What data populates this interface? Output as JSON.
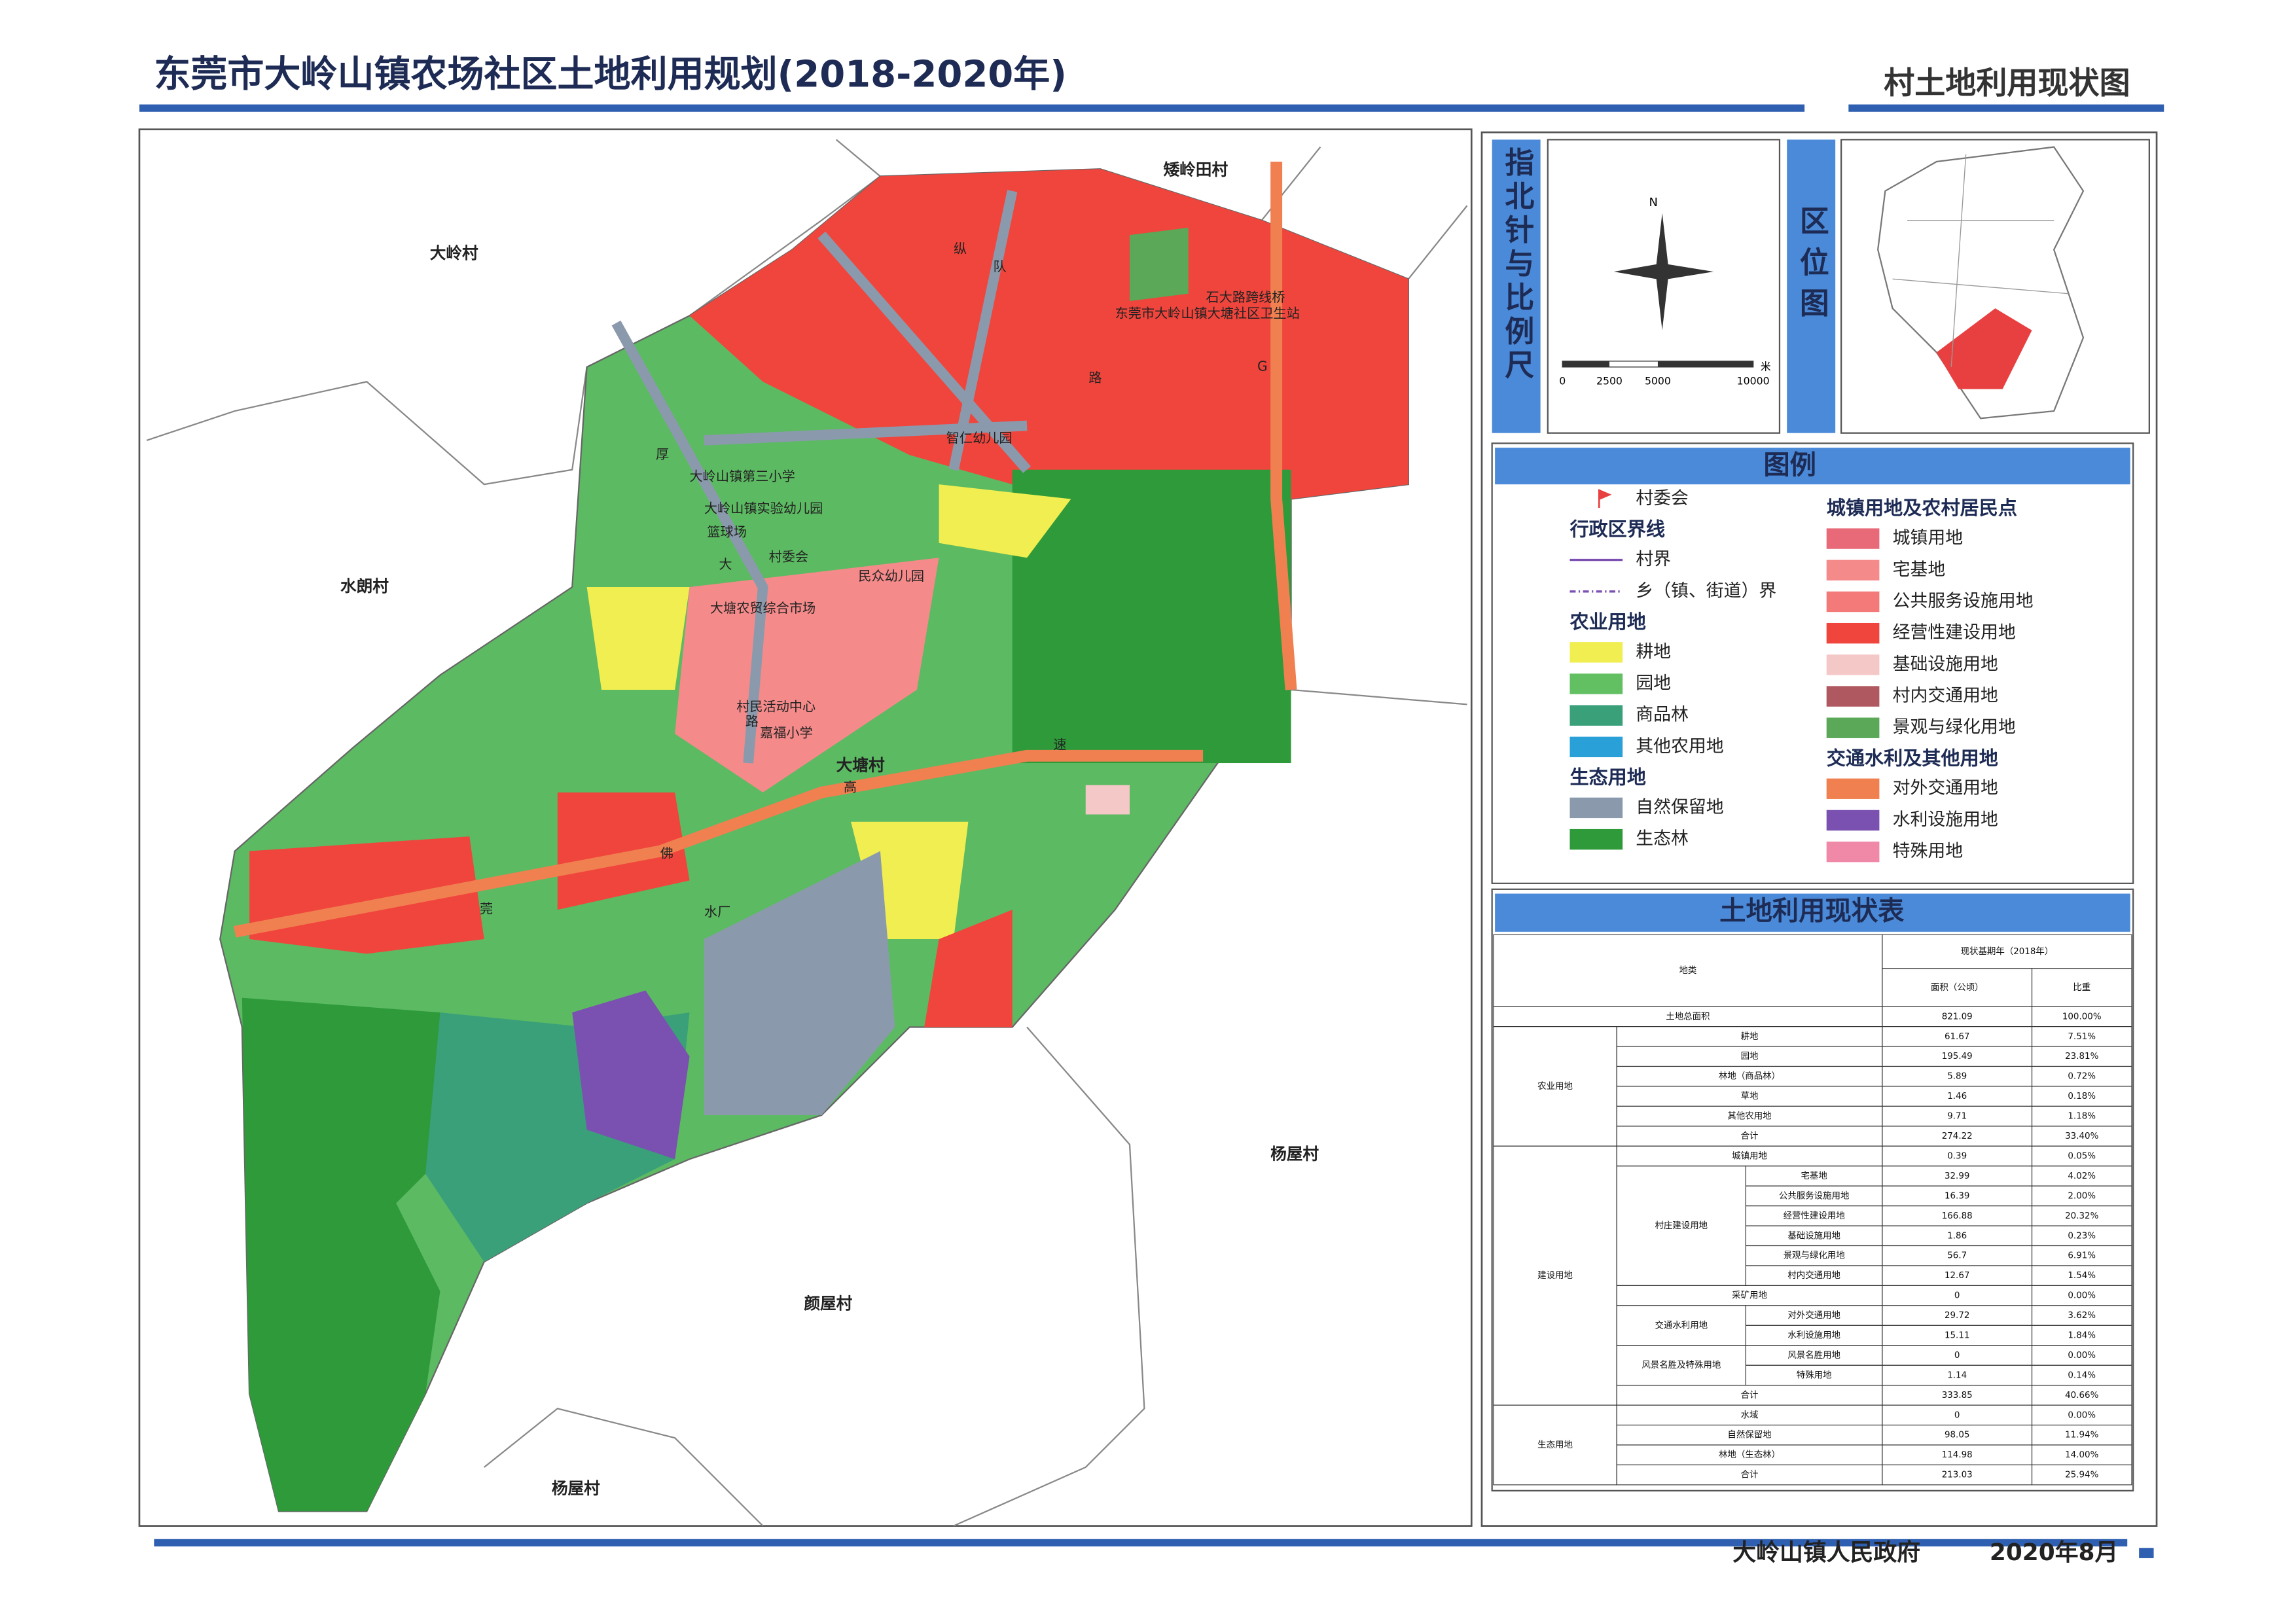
{
  "header": {
    "title": "东莞市大岭山镇农场社区土地利用规划(2018-2020年)",
    "subtitle": "村土地利用现状图"
  },
  "map": {
    "labels": [
      "大岭村",
      "矮岭田村",
      "水朗村",
      "杨屋村",
      "颜屋村",
      "杨屋村",
      "大塘村",
      "石大路跨线桥",
      "东莞市大岭山镇大塘社区卫生站",
      "智仁幼儿园",
      "大岭山镇第三小学",
      "大岭山镇实验幼儿园",
      "篮球场",
      "村委会",
      "民众幼儿园",
      "大塘农贸综合市场",
      "村民活动中心",
      "嘉福小学",
      "水厂",
      "莞",
      "佛",
      "高",
      "速",
      "厚",
      "大",
      "路",
      "纵",
      "队",
      "路",
      "G"
    ]
  },
  "compass": {
    "title": "指北针与比例尺",
    "north": "N",
    "scale": [
      "0",
      "2500",
      "5000",
      "10000"
    ],
    "unit": "米"
  },
  "location": {
    "title": "区位图"
  },
  "legend": {
    "title": "图例",
    "left": [
      {
        "label": "村委会",
        "marker": "flag"
      },
      {
        "label": "行政区界线"
      },
      {
        "label": "村界",
        "line": "solid"
      },
      {
        "label": "乡（镇、街道）界",
        "line": "dash"
      },
      {
        "label": "农业用地"
      },
      {
        "label": "耕地",
        "color": "#f0ee50"
      },
      {
        "label": "园地",
        "color": "#62c062"
      },
      {
        "label": "商品林",
        "color": "#3aa07a"
      },
      {
        "label": "其他农用地",
        "color": "#2aa0d8"
      },
      {
        "label": "生态用地"
      },
      {
        "label": "自然保留地",
        "color": "#8a9aac"
      },
      {
        "label": "生态林",
        "color": "#2e9a3a"
      }
    ],
    "right": [
      {
        "label": "城镇用地及农村居民点"
      },
      {
        "label": "城镇用地",
        "color": "#e86a78"
      },
      {
        "label": "宅基地",
        "color": "#f58a8a"
      },
      {
        "label": "公共服务设施用地",
        "color": "#f47a7a"
      },
      {
        "label": "经营性建设用地",
        "color": "#f0453c"
      },
      {
        "label": "基础设施用地",
        "color": "#f5c8c8"
      },
      {
        "label": "村内交通用地",
        "color": "#b05860"
      },
      {
        "label": "景观与绿化用地",
        "color": "#5aa858"
      },
      {
        "label": "交通水利及其他用地"
      },
      {
        "label": "对外交通用地",
        "color": "#f08050"
      },
      {
        "label": "水利设施用地",
        "color": "#7a50b0"
      },
      {
        "label": "特殊用地",
        "color": "#f088a8"
      }
    ]
  },
  "table": {
    "title": "土地利用现状表",
    "head": {
      "kind": "地类",
      "year": "现状基期年（2018年）",
      "area": "面积（公顷）",
      "ratio": "比重"
    },
    "total": {
      "label": "土地总面积",
      "area": "821.09",
      "ratio": "100.00%"
    },
    "groups": [
      {
        "name": "农业用地",
        "items": [
          {
            "label": "耕地",
            "area": "61.67",
            "ratio": "7.51%"
          },
          {
            "label": "园地",
            "area": "195.49",
            "ratio": "23.81%"
          },
          {
            "label": "林地（商品林）",
            "area": "5.89",
            "ratio": "0.72%"
          },
          {
            "label": "草地",
            "area": "1.46",
            "ratio": "0.18%"
          },
          {
            "label": "其他农用地",
            "area": "9.71",
            "ratio": "1.18%"
          },
          {
            "label": "合计",
            "area": "274.22",
            "ratio": "33.40%"
          }
        ]
      },
      {
        "name": "建设用地",
        "items": [
          {
            "label": "城镇用地",
            "area": "0.39",
            "ratio": "0.05%"
          },
          {
            "name": "村庄建设用地",
            "rows": [
              {
                "label": "宅基地",
                "area": "32.99",
                "ratio": "4.02%"
              },
              {
                "label": "公共服务设施用地",
                "area": "16.39",
                "ratio": "2.00%"
              },
              {
                "label": "经营性建设用地",
                "area": "166.88",
                "ratio": "20.32%"
              },
              {
                "label": "基础设施用地",
                "area": "1.86",
                "ratio": "0.23%"
              },
              {
                "label": "景观与绿化用地",
                "area": "56.7",
                "ratio": "6.91%"
              },
              {
                "label": "村内交通用地",
                "area": "12.67",
                "ratio": "1.54%"
              }
            ]
          },
          {
            "label": "采矿用地",
            "area": "0",
            "ratio": "0.00%"
          },
          {
            "name": "交通水利用地",
            "rows": [
              {
                "label": "对外交通用地",
                "area": "29.72",
                "ratio": "3.62%"
              },
              {
                "label": "水利设施用地",
                "area": "15.11",
                "ratio": "1.84%"
              }
            ]
          },
          {
            "name": "风景名胜及特殊用地",
            "rows": [
              {
                "label": "风景名胜用地",
                "area": "0",
                "ratio": "0.00%"
              },
              {
                "label": "特殊用地",
                "area": "1.14",
                "ratio": "0.14%"
              }
            ]
          },
          {
            "label": "合计",
            "area": "333.85",
            "ratio": "40.66%"
          }
        ]
      },
      {
        "name": "生态用地",
        "items": [
          {
            "label": "水域",
            "area": "0",
            "ratio": "0.00%"
          },
          {
            "label": "自然保留地",
            "area": "98.05",
            "ratio": "11.94%"
          },
          {
            "label": "林地（生态林）",
            "area": "114.98",
            "ratio": "14.00%"
          },
          {
            "label": "合计",
            "area": "213.03",
            "ratio": "25.94%"
          }
        ]
      }
    ]
  },
  "footer": {
    "org": "大岭山镇人民政府",
    "date": "2020年8月"
  }
}
